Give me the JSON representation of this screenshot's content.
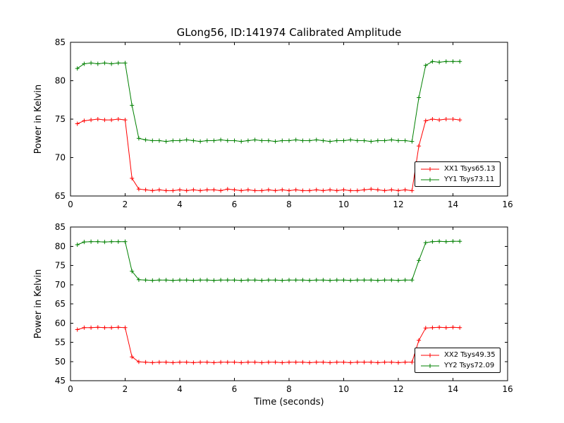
{
  "figure_title": "GLong56, ID:141974 Calibrated Amplitude",
  "colors": {
    "red": "#ff0000",
    "green": "#008000",
    "axis": "#000000",
    "background": "#ffffff"
  },
  "chart_data": [
    {
      "type": "line",
      "title": "GLong56, ID:141974 Calibrated Amplitude",
      "xlabel": "",
      "ylabel": "Power in Kelvin",
      "xlim": [
        0,
        16
      ],
      "ylim": [
        65,
        85
      ],
      "xticks": [
        0,
        2,
        4,
        6,
        8,
        10,
        12,
        14,
        16
      ],
      "yticks": [
        65,
        70,
        75,
        80,
        85
      ],
      "grid": false,
      "legend_position": "lower right",
      "x": [
        0.25,
        0.5,
        0.75,
        1.0,
        1.25,
        1.5,
        1.75,
        2.0,
        2.25,
        2.5,
        2.75,
        3.0,
        3.25,
        3.5,
        3.75,
        4.0,
        4.25,
        4.5,
        4.75,
        5.0,
        5.25,
        5.5,
        5.75,
        6.0,
        6.25,
        6.5,
        6.75,
        7.0,
        7.25,
        7.5,
        7.75,
        8.0,
        8.25,
        8.5,
        8.75,
        9.0,
        9.25,
        9.5,
        9.75,
        10.0,
        10.25,
        10.5,
        10.75,
        11.0,
        11.25,
        11.5,
        11.75,
        12.0,
        12.25,
        12.5,
        12.75,
        13.0,
        13.25,
        13.5,
        13.75,
        14.0,
        14.25
      ],
      "series": [
        {
          "name": "XX1 Tsys65.13",
          "color": "#ff0000",
          "marker": "plus",
          "values": [
            74.4,
            74.8,
            74.9,
            75.0,
            74.9,
            74.9,
            75.0,
            74.9,
            67.3,
            65.9,
            65.8,
            65.7,
            65.8,
            65.7,
            65.7,
            65.8,
            65.7,
            65.8,
            65.7,
            65.8,
            65.8,
            65.7,
            65.9,
            65.8,
            65.7,
            65.8,
            65.7,
            65.7,
            65.8,
            65.7,
            65.8,
            65.7,
            65.8,
            65.7,
            65.7,
            65.8,
            65.7,
            65.8,
            65.7,
            65.8,
            65.7,
            65.7,
            65.8,
            65.9,
            65.8,
            65.7,
            65.8,
            65.7,
            65.8,
            65.7,
            71.5,
            74.8,
            75.0,
            74.9,
            75.0,
            75.0,
            74.9
          ]
        },
        {
          "name": "YY1 Tsys73.11",
          "color": "#008000",
          "marker": "plus",
          "values": [
            81.6,
            82.2,
            82.3,
            82.2,
            82.3,
            82.2,
            82.3,
            82.3,
            76.8,
            72.5,
            72.3,
            72.2,
            72.2,
            72.1,
            72.2,
            72.2,
            72.3,
            72.2,
            72.1,
            72.2,
            72.2,
            72.3,
            72.2,
            72.2,
            72.1,
            72.2,
            72.3,
            72.2,
            72.2,
            72.1,
            72.2,
            72.2,
            72.3,
            72.2,
            72.2,
            72.3,
            72.2,
            72.1,
            72.2,
            72.2,
            72.3,
            72.2,
            72.2,
            72.1,
            72.2,
            72.2,
            72.3,
            72.2,
            72.2,
            72.1,
            77.8,
            82.0,
            82.5,
            82.4,
            82.5,
            82.5,
            82.5
          ]
        }
      ]
    },
    {
      "type": "line",
      "title": "",
      "xlabel": "Time (seconds)",
      "ylabel": "Power in Kelvin",
      "xlim": [
        0,
        16
      ],
      "ylim": [
        45,
        85
      ],
      "xticks": [
        0,
        2,
        4,
        6,
        8,
        10,
        12,
        14,
        16
      ],
      "yticks": [
        45,
        50,
        55,
        60,
        65,
        70,
        75,
        80,
        85
      ],
      "grid": false,
      "legend_position": "lower right",
      "x": [
        0.25,
        0.5,
        0.75,
        1.0,
        1.25,
        1.5,
        1.75,
        2.0,
        2.25,
        2.5,
        2.75,
        3.0,
        3.25,
        3.5,
        3.75,
        4.0,
        4.25,
        4.5,
        4.75,
        5.0,
        5.25,
        5.5,
        5.75,
        6.0,
        6.25,
        6.5,
        6.75,
        7.0,
        7.25,
        7.5,
        7.75,
        8.0,
        8.25,
        8.5,
        8.75,
        9.0,
        9.25,
        9.5,
        9.75,
        10.0,
        10.25,
        10.5,
        10.75,
        11.0,
        11.25,
        11.5,
        11.75,
        12.0,
        12.25,
        12.5,
        12.75,
        13.0,
        13.25,
        13.5,
        13.75,
        14.0,
        14.25
      ],
      "series": [
        {
          "name": "XX2 Tsys49.35",
          "color": "#ff0000",
          "marker": "plus",
          "values": [
            58.3,
            58.8,
            58.8,
            58.9,
            58.8,
            58.8,
            58.9,
            58.8,
            51.2,
            49.9,
            49.8,
            49.7,
            49.8,
            49.8,
            49.7,
            49.8,
            49.8,
            49.7,
            49.8,
            49.8,
            49.7,
            49.8,
            49.8,
            49.8,
            49.7,
            49.8,
            49.8,
            49.7,
            49.8,
            49.8,
            49.7,
            49.8,
            49.8,
            49.8,
            49.7,
            49.8,
            49.8,
            49.7,
            49.8,
            49.8,
            49.7,
            49.8,
            49.8,
            49.8,
            49.7,
            49.8,
            49.8,
            49.7,
            49.8,
            49.8,
            55.5,
            58.7,
            58.8,
            58.9,
            58.8,
            58.9,
            58.8
          ]
        },
        {
          "name": "YY2 Tsys72.09",
          "color": "#008000",
          "marker": "plus",
          "values": [
            80.4,
            81.1,
            81.2,
            81.2,
            81.1,
            81.2,
            81.2,
            81.2,
            73.5,
            71.3,
            71.2,
            71.1,
            71.2,
            71.2,
            71.1,
            71.2,
            71.2,
            71.1,
            71.2,
            71.2,
            71.1,
            71.2,
            71.2,
            71.2,
            71.1,
            71.2,
            71.2,
            71.1,
            71.2,
            71.2,
            71.1,
            71.2,
            71.2,
            71.2,
            71.1,
            71.2,
            71.2,
            71.1,
            71.2,
            71.2,
            71.1,
            71.2,
            71.2,
            71.2,
            71.1,
            71.2,
            71.2,
            71.1,
            71.2,
            71.2,
            76.3,
            80.9,
            81.2,
            81.3,
            81.2,
            81.3,
            81.3
          ]
        }
      ]
    }
  ]
}
